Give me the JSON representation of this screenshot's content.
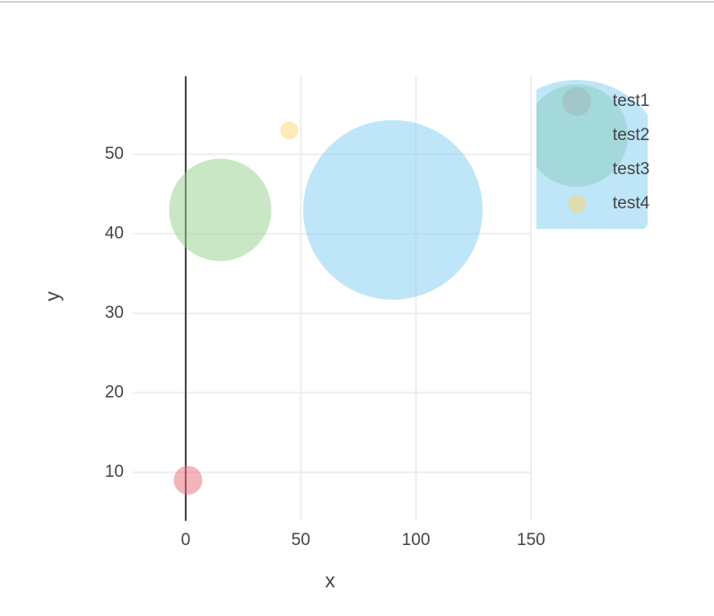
{
  "chart_data": {
    "type": "bubble",
    "x_label": "x",
    "y_label": "y",
    "series": [
      {
        "name": "test1",
        "color": "#e8697a",
        "x": [
          1
        ],
        "y": [
          9
        ],
        "sizes": [
          32
        ]
      },
      {
        "name": "test2",
        "color": "#93cf8c",
        "x": [
          15
        ],
        "y": [
          43
        ],
        "sizes": [
          114
        ]
      },
      {
        "name": "test3",
        "color": "#7fcbf2",
        "x": [
          90
        ],
        "y": [
          43
        ],
        "sizes": [
          200
        ]
      },
      {
        "name": "test4",
        "color": "#fcd56a",
        "x": [
          45
        ],
        "y": [
          53
        ],
        "sizes": [
          20
        ]
      }
    ],
    "opacity": 0.5,
    "xlim": [
      -23,
      150
    ],
    "xticks": [
      0,
      50,
      100,
      150
    ],
    "ylim": [
      3.9,
      59.8
    ],
    "yticks": [
      10,
      20,
      30,
      40,
      50
    ],
    "grid": true,
    "zeroline": true,
    "legend": "top-right"
  }
}
